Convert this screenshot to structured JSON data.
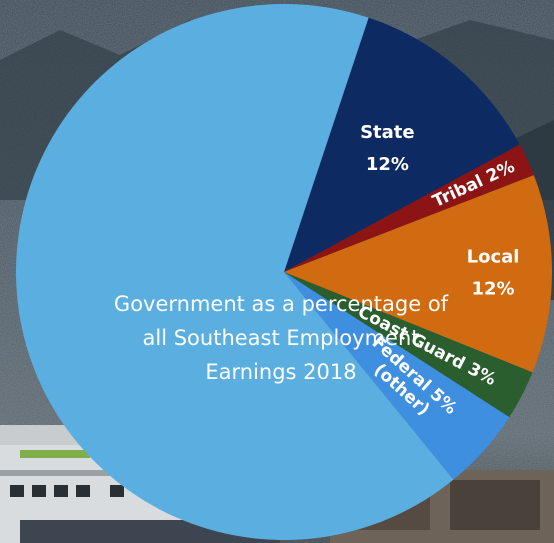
{
  "chart_data": {
    "type": "pie",
    "title": "Government as a percentage of all Southeast Employment Earnings 2018",
    "title_lines": [
      "Government as a percentage of",
      "all Southeast Employment",
      "Earnings 2018"
    ],
    "slices": [
      {
        "name": "State",
        "label_lines": [
          "State",
          "12%"
        ],
        "value": 12,
        "color": "#0d2a63"
      },
      {
        "name": "Tribal",
        "label_lines": [
          "Tribal 2%"
        ],
        "value": 2,
        "color": "#8c1414"
      },
      {
        "name": "Local",
        "label_lines": [
          "Local",
          "12%"
        ],
        "value": 12,
        "color": "#d06b12"
      },
      {
        "name": "Coast Guard",
        "label_lines": [
          "Coast Guard 3%"
        ],
        "value": 3,
        "color": "#2a5e2f"
      },
      {
        "name": "Federal (other)",
        "label_lines": [
          "Federal 5%",
          "(other)"
        ],
        "value": 5,
        "color": "#3f8fe0"
      },
      {
        "name": "Remainder",
        "label_lines": [],
        "value": 66,
        "color": "#5aaee0"
      }
    ]
  }
}
